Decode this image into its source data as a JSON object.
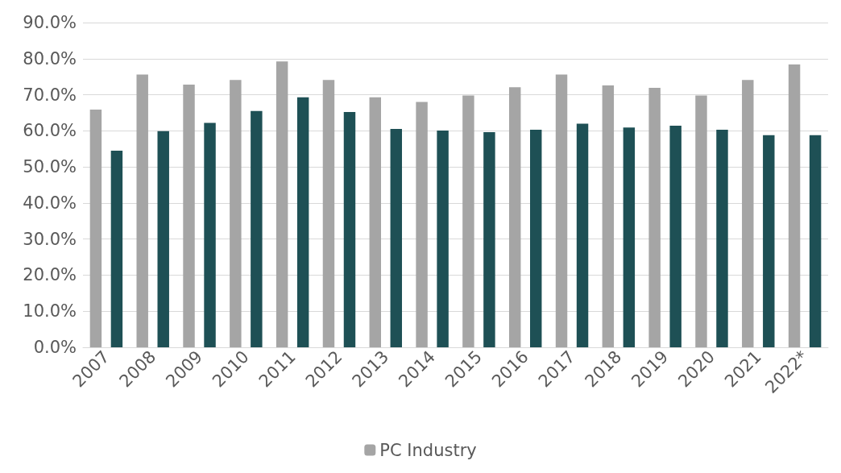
{
  "chart_data": {
    "type": "bar",
    "categories": [
      "2007",
      "2008",
      "2009",
      "2010",
      "2011",
      "2012",
      "2013",
      "2014",
      "2015",
      "2016",
      "2017",
      "2018",
      "2019",
      "2020",
      "2021",
      "2022*"
    ],
    "series": [
      {
        "name": "PC Industry",
        "color": "#a5a5a5",
        "values": [
          65.9,
          75.6,
          72.8,
          74.1,
          79.2,
          74.1,
          69.3,
          68.0,
          69.8,
          72.1,
          75.6,
          72.6,
          71.9,
          69.8,
          74.1,
          78.4
        ]
      },
      {
        "color": "#1e5055",
        "values": [
          54.5,
          59.9,
          62.2,
          65.5,
          69.3,
          65.2,
          60.5,
          60.1,
          59.6,
          60.3,
          62.0,
          60.9,
          61.4,
          60.3,
          58.8,
          58.8
        ]
      }
    ],
    "ylim": [
      0,
      90
    ],
    "yticks": [
      {
        "value": 0,
        "label": "0.0%"
      },
      {
        "value": 10,
        "label": "10.0%"
      },
      {
        "value": 20,
        "label": "20.0%"
      },
      {
        "value": 30,
        "label": "30.0%"
      },
      {
        "value": 40,
        "label": "40.0%"
      },
      {
        "value": 50,
        "label": "50.0%"
      },
      {
        "value": 60,
        "label": "60.0%"
      },
      {
        "value": 70,
        "label": "70.0%"
      },
      {
        "value": 80,
        "label": "80.0%"
      },
      {
        "value": 90,
        "label": "90.0%"
      }
    ],
    "grid": "y",
    "legend": "bottom"
  }
}
